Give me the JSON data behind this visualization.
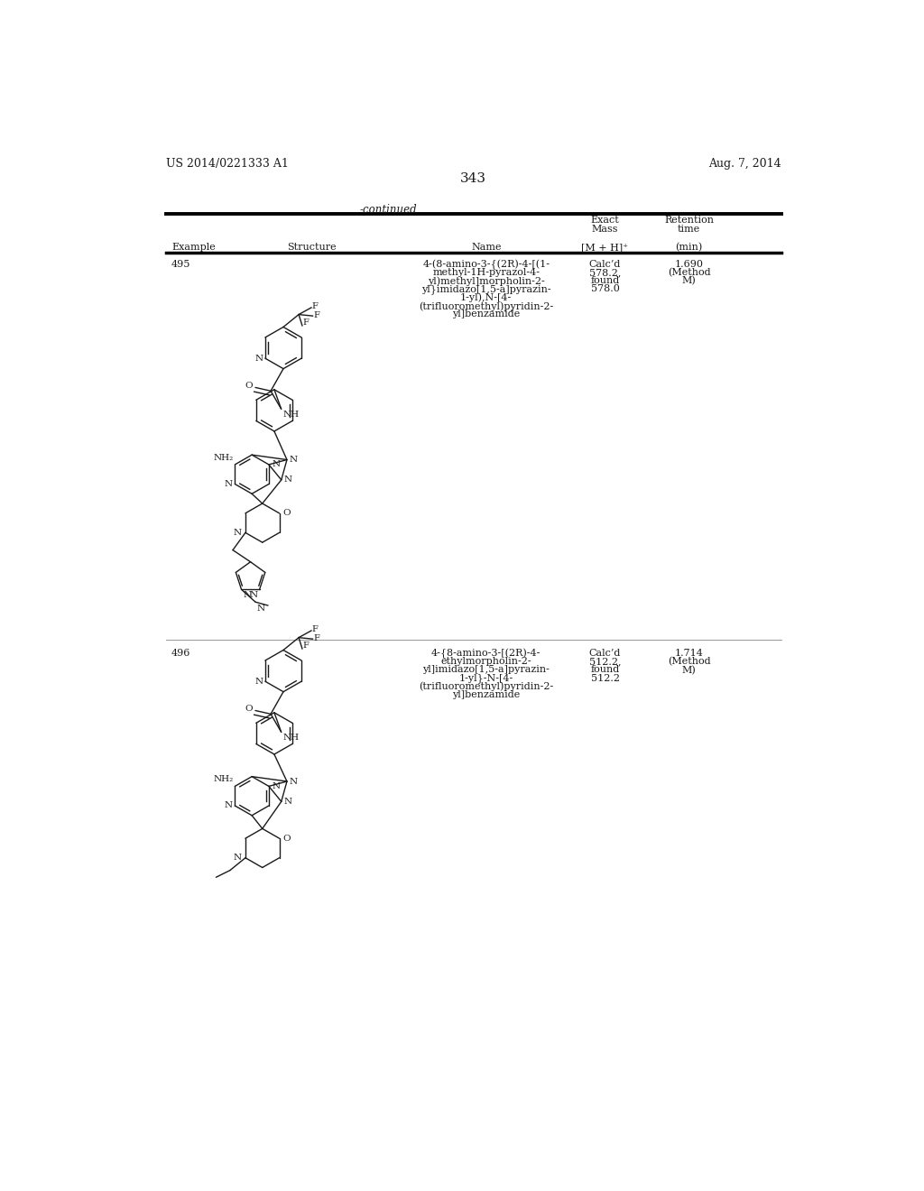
{
  "background_color": "#ffffff",
  "page_number": "343",
  "patent_number": "US 2014/0221333 A1",
  "patent_date": "Aug. 7, 2014",
  "continued_label": "-continued",
  "table_headers": {
    "col1": "Example",
    "col2": "Structure",
    "col3": "Name",
    "col4_line1": "Exact",
    "col4_line2": "Mass",
    "col4_line3": "[M + H]⁺",
    "col5_line1": "Retention",
    "col5_line2": "time",
    "col5_line3": "(min)"
  },
  "rows": [
    {
      "example": "495",
      "name_lines": [
        "4-(8-amino-3-{(2R)-4-[(1-",
        "methyl-1H-pyrazol-4-",
        "yl)methyl]morpholin-2-",
        "yl}imidazo[1,5-a]pyrazin-",
        "1-yl),N-[4-",
        "(trifluoromethyl)pyridin-2-",
        "yl]benzamide"
      ],
      "exact_mass_lines": [
        "Calc’d",
        "578.2,",
        "found",
        "578.0"
      ],
      "retention_lines": [
        "1.690",
        "(Method",
        "M)"
      ]
    },
    {
      "example": "496",
      "name_lines": [
        "4-{8-amino-3-[(2R)-4-",
        "ethylmorpholin-2-",
        "yl]imidazo[1,5-a]pyrazin-",
        "1-yl}-N-[4-",
        "(trifluoromethyl)pyridin-2-",
        "yl]benzamide"
      ],
      "exact_mass_lines": [
        "Calc’d",
        "512.2,",
        "found",
        "512.2"
      ],
      "retention_lines": [
        "1.714",
        "(Method",
        "M)"
      ]
    }
  ],
  "font_size_header": 8,
  "font_size_body": 8,
  "font_size_small": 7
}
